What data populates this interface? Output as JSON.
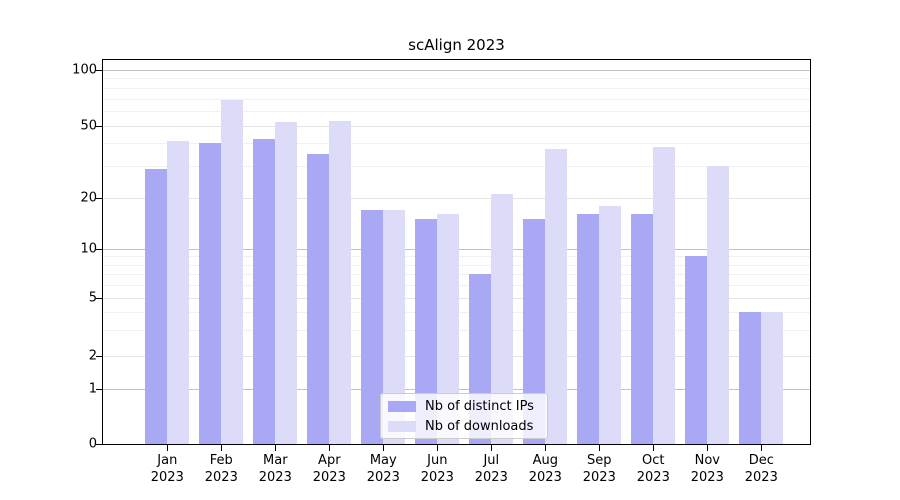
{
  "title": "scAlign 2023",
  "chart_data": {
    "type": "bar",
    "title": "scAlign 2023",
    "categories": [
      "Jan 2023",
      "Feb 2023",
      "Mar 2023",
      "Apr 2023",
      "May 2023",
      "Jun 2023",
      "Jul 2023",
      "Aug 2023",
      "Sep 2023",
      "Oct 2023",
      "Nov 2023",
      "Dec 2023"
    ],
    "x_months": [
      "Jan",
      "Feb",
      "Mar",
      "Apr",
      "May",
      "Jun",
      "Jul",
      "Aug",
      "Sep",
      "Oct",
      "Nov",
      "Dec"
    ],
    "year": "2023",
    "series": [
      {
        "name": "Nb of distinct IPs",
        "color": "#a8a8f5",
        "values": [
          29,
          40,
          42,
          35,
          17,
          15,
          7,
          15,
          16,
          16,
          9,
          4
        ]
      },
      {
        "name": "Nb of downloads",
        "color": "#dcdcf8",
        "values": [
          41,
          69,
          52,
          53,
          17,
          16,
          21,
          37,
          18,
          38,
          30,
          4
        ]
      }
    ],
    "y_ticks": [
      0,
      1,
      2,
      5,
      10,
      20,
      50,
      100
    ],
    "y_scale": "pseudo-log",
    "ylim": [
      0,
      110
    ],
    "grid": true,
    "legend_position": "inside-bottom-center",
    "colors": {
      "major_gridline": "#c2c2c2",
      "secondary_gridline": "#e4e4e4",
      "minor_gridline": "#f1f1f1",
      "axis": "#000000"
    }
  }
}
